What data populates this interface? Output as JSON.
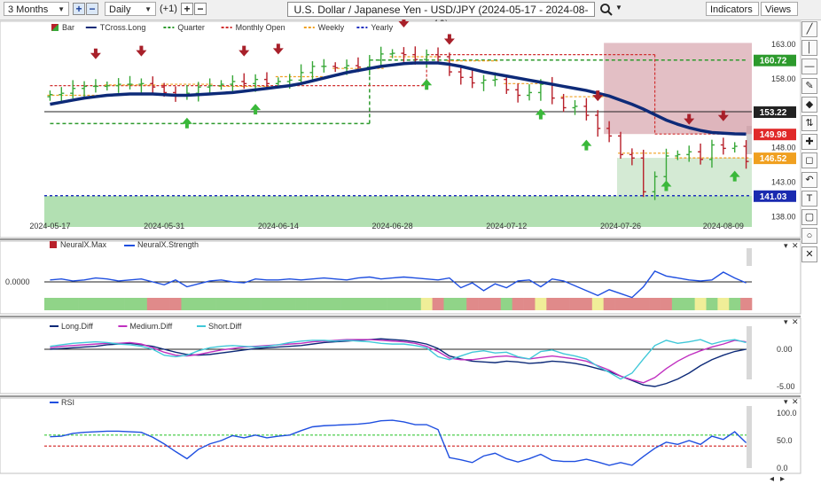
{
  "toolbar": {
    "period": "3 Months",
    "interval": "Daily",
    "offset": "(+1)",
    "title": "U.S. Dollar / Japanese Yen - USD/JPY (2024-05-17 - 2024-08-19)",
    "indicators": "Indicators",
    "views": "Views",
    "plus_icon": "plus-icon",
    "minus_icon": "minus-icon",
    "search_icon": "search-icon"
  },
  "side_tools": [
    "line-tool-icon",
    "vertical-line-icon",
    "horizontal-line-icon",
    "pen-icon",
    "fill-icon",
    "fib-icon",
    "crosshair-icon",
    "callout-icon",
    "curve-icon",
    "text-icon",
    "rectangle-icon",
    "circle-icon",
    "close-icon"
  ],
  "colors": {
    "up": "#38a838",
    "down": "#b8202a",
    "tcross": "#0d2a78",
    "quarter": "#2d9a2d",
    "monthly": "#d03030",
    "weekly": "#f0a020",
    "yearly": "#2030c0",
    "long_diff": "#0d2a78",
    "medium_diff": "#c030c0",
    "short_diff": "#40c8d8",
    "rsi": "#1f4fe0"
  },
  "chart_data": [
    {
      "type": "candlestick",
      "title": "",
      "legend": [
        "Bar",
        "TCross.Long",
        "Quarter",
        "Monthly Open",
        "Weekly",
        "Yearly"
      ],
      "x_ticks": [
        "2024-05-17",
        "2024-05-31",
        "2024-06-14",
        "2024-06-28",
        "2024-07-12",
        "2024-07-26",
        "2024-08-09"
      ],
      "y_ticks": [
        163.0,
        158.0,
        153.0,
        148.0,
        143.0,
        138.0
      ],
      "ylim": [
        136.5,
        164.8
      ],
      "price_labels": [
        {
          "value": 160.72,
          "text": "160.72",
          "bg": "#2c9a2c"
        },
        {
          "value": 153.22,
          "text": "153.22",
          "bg": "#222222"
        },
        {
          "value": 149.98,
          "text": "149.98",
          "bg": "#e02828"
        },
        {
          "value": 146.52,
          "text": "146.52",
          "bg": "#f0a020"
        },
        {
          "value": 141.03,
          "text": "141.03",
          "bg": "#1a2ab0"
        }
      ],
      "close": [
        155.7,
        155.9,
        156.6,
        156.9,
        156.9,
        157.0,
        157.2,
        157.2,
        157.3,
        156.8,
        156.0,
        155.7,
        155.9,
        156.8,
        157.0,
        157.2,
        157.6,
        157.3,
        157.9,
        157.3,
        157.6,
        157.8,
        158.9,
        159.8,
        159.8,
        159.6,
        159.9,
        159.7,
        160.7,
        161.6,
        161.7,
        161.5,
        160.8,
        161.5,
        161.2,
        159.0,
        158.2,
        157.4,
        157.8,
        157.9,
        156.4,
        155.6,
        156.0,
        157.2,
        155.2,
        153.8,
        154.0,
        152.7,
        150.8,
        149.7,
        147.0,
        146.5,
        141.6,
        143.8,
        146.8,
        147.0,
        147.4,
        146.3,
        148.4,
        147.9,
        148.2,
        146.0
      ],
      "tcross_long": [
        154.3,
        154.6,
        154.9,
        155.2,
        155.4,
        155.6,
        155.7,
        155.8,
        155.8,
        155.8,
        155.7,
        155.6,
        155.6,
        155.7,
        155.8,
        155.9,
        156.0,
        156.2,
        156.4,
        156.6,
        156.8,
        157.0,
        157.3,
        157.7,
        158.1,
        158.5,
        158.9,
        159.2,
        159.5,
        159.8,
        160.0,
        160.2,
        160.3,
        160.3,
        160.3,
        160.1,
        159.8,
        159.4,
        159.0,
        158.7,
        158.4,
        158.1,
        157.8,
        157.5,
        157.2,
        156.9,
        156.6,
        156.3,
        155.9,
        155.5,
        154.9,
        154.3,
        153.6,
        152.8,
        152.0,
        151.4,
        150.9,
        150.5,
        150.2,
        150.1,
        150.0,
        149.98
      ],
      "quarter": [
        {
          "from": 0,
          "to": 28,
          "value": 151.5
        },
        {
          "from": 28,
          "to": 61,
          "value": 160.72
        }
      ],
      "monthly_open": [
        {
          "from": 0,
          "to": 10,
          "value": 157.0
        },
        {
          "from": 10,
          "to": 33,
          "value": 157.0
        },
        {
          "from": 33,
          "to": 53,
          "value": 161.5
        },
        {
          "from": 53,
          "to": 61,
          "value": 149.98
        }
      ],
      "weekly": [
        {
          "from": 0,
          "to": 4,
          "value": 155.6
        },
        {
          "from": 5,
          "to": 9,
          "value": 157.1
        },
        {
          "from": 10,
          "to": 14,
          "value": 157.2
        },
        {
          "from": 15,
          "to": 19,
          "value": 156.9
        },
        {
          "from": 20,
          "to": 24,
          "value": 158.3
        },
        {
          "from": 25,
          "to": 29,
          "value": 159.5
        },
        {
          "from": 30,
          "to": 34,
          "value": 161.2
        },
        {
          "from": 35,
          "to": 39,
          "value": 160.6
        },
        {
          "from": 40,
          "to": 44,
          "value": 157.3
        },
        {
          "from": 45,
          "to": 49,
          "value": 155.4
        },
        {
          "from": 50,
          "to": 54,
          "value": 147.2
        },
        {
          "from": 55,
          "to": 61,
          "value": 146.52
        }
      ],
      "yearly": 141.03,
      "red_arrows": [
        4,
        8,
        17,
        20,
        31,
        35,
        48,
        56,
        59
      ],
      "green_arrows": [
        12,
        18,
        33,
        43,
        47,
        54,
        60
      ]
    },
    {
      "type": "bar",
      "title": "",
      "legend": [
        "NeuralX.Max",
        "NeuralX.Strength"
      ],
      "y_ticks": [
        {
          "value": 0,
          "label": "0.0000"
        }
      ],
      "regime": [
        "G",
        "G",
        "G",
        "G",
        "G",
        "G",
        "G",
        "G",
        "G",
        "R",
        "R",
        "R",
        "G",
        "G",
        "G",
        "G",
        "G",
        "G",
        "G",
        "G",
        "G",
        "G",
        "G",
        "G",
        "G",
        "G",
        "G",
        "G",
        "G",
        "G",
        "G",
        "G",
        "G",
        "Y",
        "R",
        "G",
        "G",
        "R",
        "R",
        "R",
        "G",
        "R",
        "R",
        "Y",
        "R",
        "R",
        "R",
        "R",
        "Y",
        "R",
        "R",
        "R",
        "R",
        "R",
        "R",
        "G",
        "G",
        "Y",
        "G",
        "Y",
        "G",
        "R"
      ],
      "strength": [
        0.2,
        0.3,
        0.1,
        0.2,
        0.4,
        0.3,
        0.1,
        0.2,
        0.3,
        0.0,
        -0.3,
        0.2,
        -0.5,
        -0.2,
        0.1,
        0.2,
        0.0,
        -0.1,
        0.3,
        0.2,
        0.2,
        0.3,
        0.2,
        0.3,
        0.4,
        0.3,
        0.2,
        0.4,
        0.5,
        0.3,
        0.4,
        0.5,
        0.4,
        0.3,
        0.2,
        0.4,
        -0.6,
        -0.1,
        -0.9,
        -0.2,
        -0.6,
        0.1,
        0.2,
        -0.5,
        0.3,
        0.1,
        -0.4,
        -0.9,
        -1.4,
        -0.8,
        -1.2,
        -1.6,
        -0.5,
        1.1,
        0.6,
        0.4,
        0.2,
        0.1,
        0.2,
        1.0,
        0.4,
        -0.1
      ]
    },
    {
      "type": "line",
      "title": "",
      "legend": [
        "Long.Diff",
        "Medium.Diff",
        "Short.Diff"
      ],
      "y_ticks": [
        0.0,
        -5.0
      ],
      "tick_labels": [
        "0.00",
        "-5.00"
      ],
      "ylim": [
        -5.5,
        1.8
      ],
      "series": [
        {
          "name": "Long.Diff",
          "values": [
            0.0,
            0.1,
            0.2,
            0.3,
            0.4,
            0.6,
            0.7,
            0.8,
            0.6,
            0.4,
            0.0,
            -0.4,
            -0.7,
            -0.8,
            -0.7,
            -0.5,
            -0.3,
            -0.1,
            0.1,
            0.2,
            0.3,
            0.4,
            0.5,
            0.7,
            0.9,
            1.0,
            1.1,
            1.2,
            1.3,
            1.4,
            1.3,
            1.2,
            1.0,
            0.7,
            0.1,
            -0.9,
            -1.3,
            -1.6,
            -1.7,
            -1.8,
            -1.6,
            -1.7,
            -1.9,
            -1.8,
            -1.6,
            -1.7,
            -1.9,
            -2.2,
            -2.6,
            -3.0,
            -3.6,
            -4.2,
            -4.8,
            -5.0,
            -4.6,
            -4.0,
            -3.2,
            -2.2,
            -1.4,
            -0.8,
            -0.3,
            0.0
          ]
        },
        {
          "name": "Medium.Diff",
          "values": [
            0.2,
            0.4,
            0.5,
            0.6,
            0.7,
            0.8,
            0.8,
            0.9,
            0.7,
            0.2,
            -0.4,
            -0.8,
            -0.9,
            -0.7,
            -0.4,
            -0.1,
            0.1,
            0.3,
            0.4,
            0.5,
            0.6,
            0.7,
            0.8,
            1.0,
            1.1,
            1.2,
            1.3,
            1.3,
            1.3,
            1.2,
            1.1,
            1.0,
            0.8,
            0.4,
            -0.3,
            -1.2,
            -1.4,
            -1.4,
            -1.2,
            -1.0,
            -0.9,
            -1.1,
            -1.3,
            -1.1,
            -0.9,
            -1.1,
            -1.3,
            -1.6,
            -2.2,
            -2.8,
            -3.6,
            -4.1,
            -4.5,
            -3.8,
            -2.6,
            -1.6,
            -0.8,
            -0.2,
            0.3,
            0.7,
            1.2,
            1.0
          ]
        },
        {
          "name": "Short.Diff",
          "values": [
            0.4,
            0.6,
            0.8,
            0.9,
            1.0,
            0.9,
            0.7,
            0.6,
            0.4,
            0.0,
            -0.8,
            -1.0,
            -0.8,
            -0.2,
            0.2,
            0.4,
            0.5,
            0.4,
            0.3,
            0.4,
            0.6,
            0.9,
            1.1,
            1.2,
            1.2,
            1.1,
            1.2,
            1.1,
            1.0,
            0.8,
            0.7,
            0.7,
            0.5,
            0.2,
            -1.0,
            -1.4,
            -0.9,
            -0.4,
            -0.2,
            -0.5,
            -0.4,
            -1.0,
            -1.3,
            -0.3,
            -0.1,
            -0.6,
            -0.9,
            -1.3,
            -2.3,
            -3.1,
            -4.0,
            -3.2,
            -1.3,
            0.5,
            1.2,
            0.8,
            1.0,
            1.3,
            0.7,
            1.1,
            1.3,
            0.9
          ]
        }
      ]
    },
    {
      "type": "line",
      "title": "",
      "legend": [
        "RSI"
      ],
      "y_ticks": [
        100.0,
        50.0,
        0.0
      ],
      "tick_labels": [
        "100.0",
        "50.0",
        "0.0"
      ],
      "ylim": [
        -5,
        106
      ],
      "levels": [
        {
          "value": 60,
          "color": "#3ac83a"
        },
        {
          "value": 40,
          "color": "#d02020"
        }
      ],
      "series": [
        {
          "name": "RSI",
          "values": [
            57,
            58,
            63,
            65,
            66,
            67,
            67,
            66,
            65,
            56,
            44,
            30,
            17,
            34,
            44,
            50,
            59,
            55,
            60,
            55,
            58,
            60,
            68,
            75,
            77,
            78,
            79,
            80,
            82,
            86,
            87,
            84,
            79,
            79,
            70,
            19,
            15,
            10,
            22,
            27,
            17,
            11,
            17,
            25,
            14,
            12,
            12,
            16,
            11,
            5,
            10,
            5,
            21,
            36,
            47,
            43,
            50,
            43,
            58,
            52,
            66,
            46
          ]
        }
      ]
    }
  ]
}
